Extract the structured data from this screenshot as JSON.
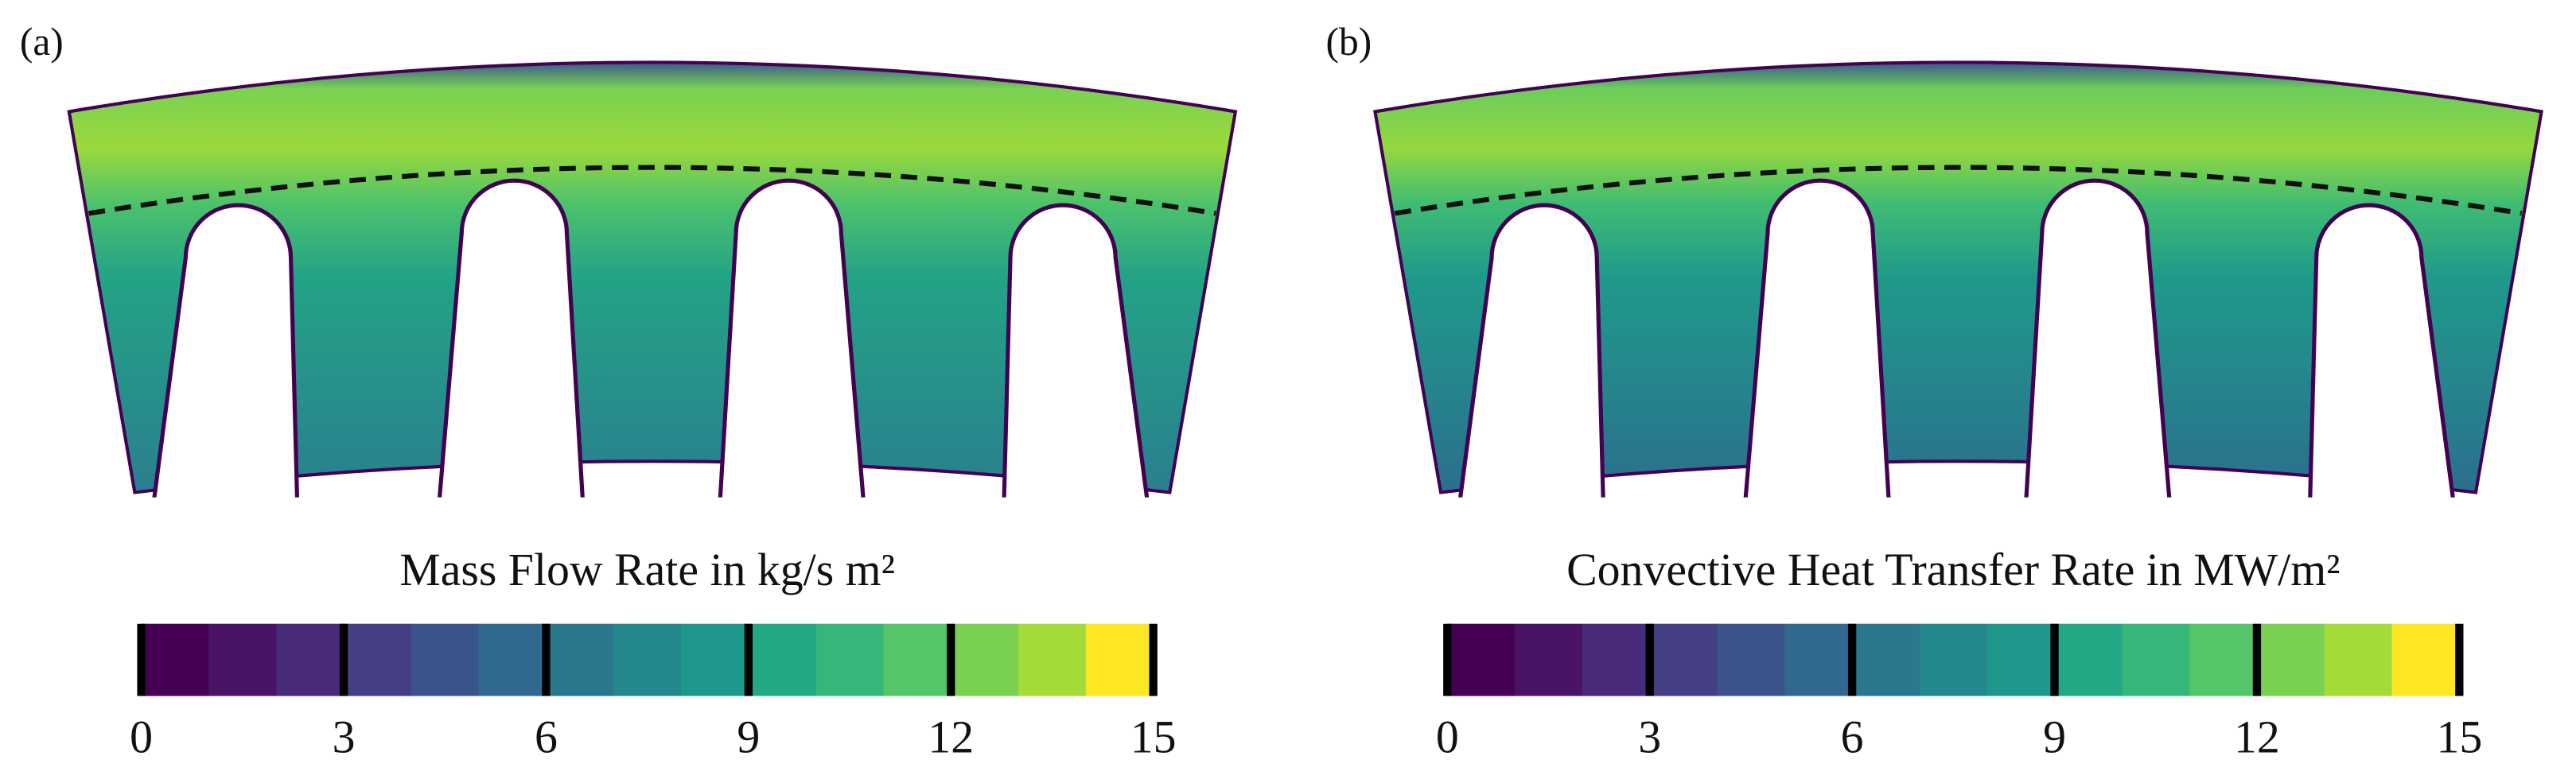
{
  "panels": [
    {
      "label": "(a)",
      "colorbar": {
        "title": "Mass Flow Rate in kg/s m²",
        "lim": [
          0,
          15
        ],
        "ticks": [
          0,
          3,
          6,
          9,
          12,
          15
        ],
        "colors": [
          "#440154",
          "#4a1466",
          "#482a7a",
          "#433e85",
          "#3a538b",
          "#31688e",
          "#2a788e",
          "#23888e",
          "#1f988b",
          "#22a884",
          "#35b779",
          "#54c568",
          "#7ad151",
          "#a5db36",
          "#fde725"
        ]
      }
    },
    {
      "label": "(b)",
      "colorbar": {
        "title": "Convective Heat Transfer Rate in MW/m²",
        "lim": [
          0,
          15
        ],
        "ticks": [
          0,
          3,
          6,
          9,
          12,
          15
        ],
        "colors": [
          "#440154",
          "#4a1466",
          "#482a7a",
          "#433e85",
          "#3a538b",
          "#31688e",
          "#2a788e",
          "#23888e",
          "#1f988b",
          "#22a884",
          "#35b779",
          "#54c568",
          "#7ad151",
          "#a5db36",
          "#fde725"
        ]
      }
    }
  ]
}
